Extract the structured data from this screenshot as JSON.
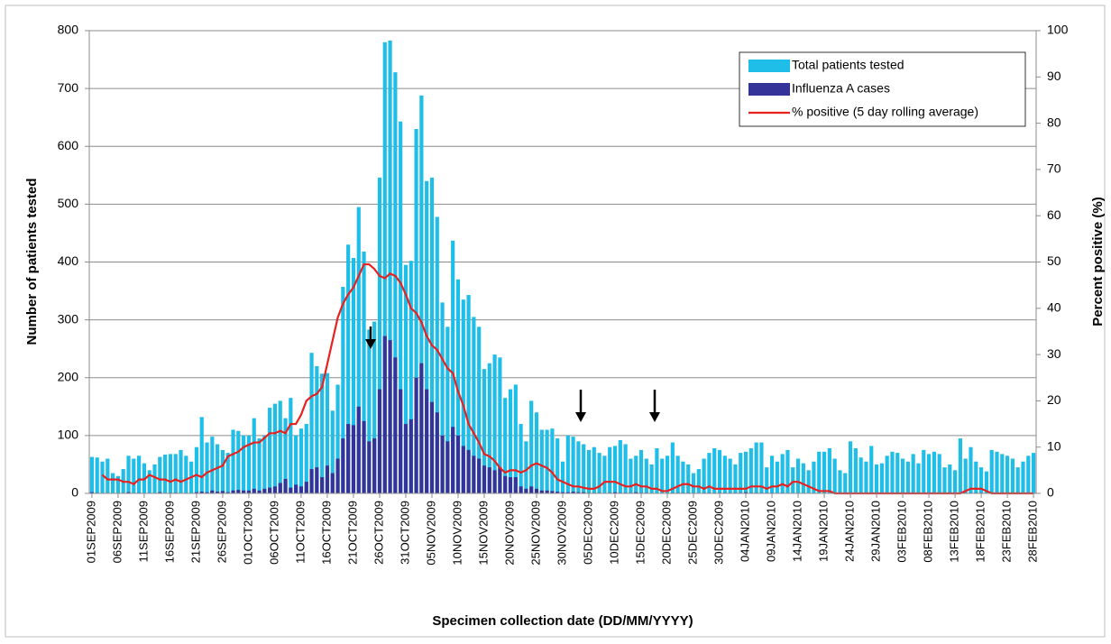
{
  "chart_data": {
    "type": "bar-line",
    "x_label": "Specimen collection date (DD/MM/YYYY)",
    "y_label": "Number of patients tested",
    "y2_label": "Percent positive (%)",
    "ylim": [
      0,
      800
    ],
    "yticks": [
      0,
      100,
      200,
      300,
      400,
      500,
      600,
      700,
      800
    ],
    "y2lim": [
      0,
      100
    ],
    "y2ticks": [
      0,
      10,
      20,
      30,
      40,
      50,
      60,
      70,
      80,
      90,
      100
    ],
    "grid": true,
    "legend": "upper right",
    "categories": [
      "01SEP2009",
      null,
      null,
      null,
      null,
      "06SEP2009",
      null,
      null,
      null,
      null,
      "11SEP2009",
      null,
      null,
      null,
      null,
      "16SEP2009",
      null,
      null,
      null,
      null,
      "21SEP2009",
      null,
      null,
      null,
      null,
      "26SEP2009",
      null,
      null,
      null,
      null,
      "01OCT2009",
      null,
      null,
      null,
      null,
      "06OCT2009",
      null,
      null,
      null,
      null,
      "11OCT2009",
      null,
      null,
      null,
      null,
      "16OCT2009",
      null,
      null,
      null,
      null,
      "21OCT2009",
      null,
      null,
      null,
      null,
      "26OCT2009",
      null,
      null,
      null,
      null,
      "31OCT2009",
      null,
      null,
      null,
      null,
      "05NOV2009",
      null,
      null,
      null,
      null,
      "10NOV2009",
      null,
      null,
      null,
      null,
      "15NOV2009",
      null,
      null,
      null,
      null,
      "20NOV2009",
      null,
      null,
      null,
      null,
      "25NOV2009",
      null,
      null,
      null,
      null,
      "30NOV2009",
      null,
      null,
      null,
      null,
      "05DEC2009",
      null,
      null,
      null,
      null,
      "10DEC2009",
      null,
      null,
      null,
      null,
      "15DEC2009",
      null,
      null,
      null,
      null,
      "20DEC2009",
      null,
      null,
      null,
      null,
      "25DEC2009",
      null,
      null,
      null,
      null,
      "30DEC2009",
      null,
      null,
      null,
      null,
      "04JAN2010",
      null,
      null,
      null,
      null,
      "09JAN2010",
      null,
      null,
      null,
      null,
      "14JAN2010",
      null,
      null,
      null,
      null,
      "19JAN2010",
      null,
      null,
      null,
      null,
      "24JAN2010",
      null,
      null,
      null,
      null,
      "29JAN2010",
      null,
      null,
      null,
      null,
      "03FEB2010",
      null,
      null,
      null,
      null,
      "08FEB2010",
      null,
      null,
      null,
      null,
      "13FEB2010",
      null,
      null,
      null,
      null,
      "18FEB2010",
      null,
      null,
      null,
      null,
      "23FEB2010",
      null,
      null,
      null,
      null,
      "28FEB2010"
    ],
    "series": [
      {
        "name": "Total patients tested",
        "color": "#1ebee8",
        "values": [
          63,
          62,
          55,
          60,
          35,
          30,
          42,
          65,
          60,
          65,
          52,
          40,
          50,
          63,
          67,
          68,
          68,
          75,
          65,
          55,
          80,
          132,
          88,
          98,
          85,
          75,
          70,
          110,
          108,
          100,
          100,
          130,
          95,
          100,
          148,
          155,
          160,
          130,
          165,
          100,
          112,
          120,
          243,
          220,
          207,
          208,
          143,
          188,
          357,
          430,
          407,
          495,
          418,
          283,
          297,
          546,
          780,
          783,
          728,
          643,
          395,
          402,
          630,
          688,
          540,
          546,
          478,
          330,
          288,
          437,
          370,
          335,
          343,
          305,
          288,
          215,
          225,
          240,
          235,
          165,
          180,
          188,
          120,
          90,
          160,
          140,
          110,
          110,
          112,
          95,
          55,
          100,
          98,
          90,
          85,
          75,
          80,
          70,
          65,
          80,
          82,
          92,
          85,
          60,
          65,
          75,
          60,
          50,
          78,
          60,
          65,
          88,
          65,
          55,
          50,
          35,
          42,
          60,
          70,
          78,
          75,
          65,
          60,
          50,
          70,
          72,
          78,
          88,
          88,
          45,
          65,
          55,
          68,
          75,
          45,
          60,
          52,
          40,
          55,
          72,
          72,
          78,
          60,
          40,
          35,
          90,
          78,
          62,
          55,
          82,
          50,
          52,
          65,
          72,
          70,
          60,
          55,
          68,
          52,
          75,
          68,
          72,
          68,
          45,
          50,
          40,
          95,
          60,
          80,
          55,
          45,
          38,
          75,
          72,
          68,
          65,
          60,
          45,
          55,
          65,
          70
        ]
      },
      {
        "name": "Influenza A cases",
        "color": "#333399",
        "values": [
          2,
          1,
          0,
          0,
          0,
          0,
          0,
          2,
          0,
          1,
          0,
          0,
          0,
          2,
          0,
          1,
          1,
          0,
          0,
          0,
          2,
          3,
          2,
          5,
          3,
          4,
          2,
          5,
          6,
          5,
          5,
          8,
          5,
          8,
          10,
          12,
          18,
          25,
          10,
          15,
          12,
          20,
          42,
          45,
          28,
          48,
          35,
          60,
          95,
          120,
          118,
          150,
          125,
          90,
          95,
          180,
          272,
          265,
          235,
          180,
          120,
          128,
          200,
          225,
          180,
          158,
          140,
          100,
          90,
          115,
          100,
          82,
          75,
          65,
          60,
          48,
          45,
          40,
          45,
          30,
          28,
          28,
          12,
          8,
          12,
          8,
          5,
          5,
          4,
          3,
          2,
          2,
          3,
          2,
          2,
          1,
          1,
          1,
          0,
          1,
          2,
          1,
          1,
          1,
          2,
          1,
          1,
          0,
          0,
          0,
          0,
          1,
          1,
          1,
          1,
          0,
          0,
          1,
          1,
          1,
          1,
          1,
          1,
          1,
          1,
          2,
          1,
          1,
          1,
          1,
          1,
          0,
          1,
          0,
          0,
          0,
          0,
          0,
          0,
          0,
          0,
          0,
          0,
          0,
          0,
          0,
          0,
          0,
          0,
          0,
          0,
          0,
          0,
          0,
          0,
          0,
          0,
          0,
          0,
          0,
          0,
          0,
          0,
          0,
          0,
          0,
          0,
          1,
          1,
          1,
          1,
          0,
          0,
          0,
          0,
          0,
          0,
          0,
          0,
          0,
          0
        ]
      },
      {
        "name": "% positive (5 day rolling average)",
        "color": "#e8201e",
        "axis": "y2",
        "values": [
          null,
          null,
          4,
          3,
          3,
          3,
          2.5,
          2.5,
          2,
          3,
          3,
          4,
          3.5,
          3,
          3,
          2.5,
          3,
          2.5,
          3,
          3.5,
          4,
          3.5,
          4.5,
          5,
          5.5,
          6,
          8,
          8.5,
          9,
          10,
          10.5,
          11,
          11,
          12,
          13,
          13,
          13.5,
          13,
          15,
          15,
          17,
          20,
          21,
          21.5,
          23,
          28,
          33,
          38,
          41,
          43,
          44.5,
          47,
          49.5,
          49.5,
          48.5,
          47,
          46.5,
          47.5,
          47,
          45.5,
          43,
          40,
          39,
          37,
          34,
          32,
          31,
          29,
          27,
          26,
          22,
          19,
          15,
          13,
          11,
          8.5,
          8,
          7,
          5.5,
          4.5,
          5,
          5,
          4.5,
          5,
          6,
          6.5,
          6,
          5.5,
          4.5,
          3,
          2.5,
          2,
          1.5,
          1.5,
          1.2,
          1,
          1,
          1.5,
          2.5,
          2.5,
          2.5,
          2,
          1.5,
          1.5,
          2,
          1.5,
          1.5,
          1,
          1,
          0.5,
          0.5,
          1,
          1.5,
          2,
          2,
          1.5,
          1.5,
          1,
          1.5,
          1,
          1,
          1,
          1,
          1,
          1,
          1,
          1.5,
          1.5,
          1.5,
          1,
          1.5,
          1.5,
          2,
          1.5,
          2.5,
          2.5,
          2,
          1.5,
          1,
          0.5,
          0.5,
          0.5,
          0,
          0,
          0,
          0,
          0,
          0,
          0,
          0,
          0,
          0,
          0,
          0,
          0,
          0,
          0,
          0,
          0,
          0,
          0,
          0,
          0,
          0,
          0,
          0,
          0,
          0.5,
          1,
          1,
          1,
          0.5,
          0,
          0,
          0,
          0,
          0,
          0,
          0,
          0,
          0
        ]
      }
    ]
  }
}
